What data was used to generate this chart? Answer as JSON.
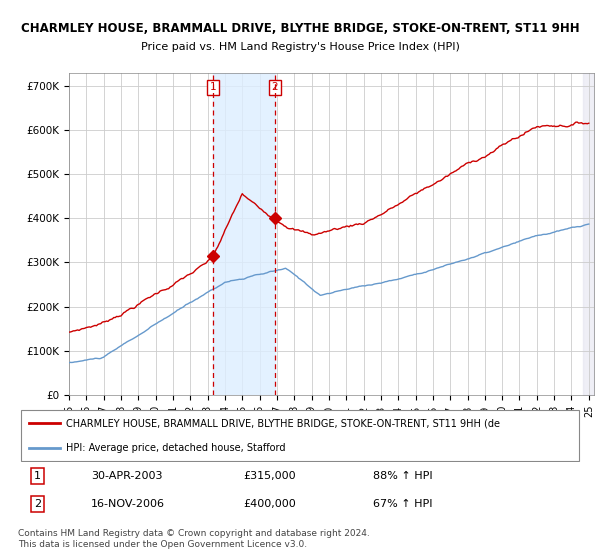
{
  "title": "CHARMLEY HOUSE, BRAMMALL DRIVE, BLYTHE BRIDGE, STOKE-ON-TRENT, ST11 9HH",
  "subtitle": "Price paid vs. HM Land Registry's House Price Index (HPI)",
  "ylim": [
    0,
    730000
  ],
  "yticks": [
    0,
    100000,
    200000,
    300000,
    400000,
    500000,
    600000,
    700000
  ],
  "ytick_labels": [
    "£0",
    "£100K",
    "£200K",
    "£300K",
    "£400K",
    "£500K",
    "£600K",
    "£700K"
  ],
  "sale1_year": 2003.33,
  "sale1_price": 315000,
  "sale2_year": 2006.88,
  "sale2_price": 400000,
  "red_color": "#cc0000",
  "blue_color": "#6699cc",
  "shade_color": "#ddeeff",
  "grid_color": "#cccccc",
  "legend_label_red": "CHARMLEY HOUSE, BRAMMALL DRIVE, BLYTHE BRIDGE, STOKE-ON-TRENT, ST11 9HH (de",
  "legend_label_blue": "HPI: Average price, detached house, Stafford",
  "table_rows": [
    [
      "1",
      "30-APR-2003",
      "£315,000",
      "88% ↑ HPI"
    ],
    [
      "2",
      "16-NOV-2006",
      "£400,000",
      "67% ↑ HPI"
    ]
  ],
  "footnote": "Contains HM Land Registry data © Crown copyright and database right 2024.\nThis data is licensed under the Open Government Licence v3.0."
}
